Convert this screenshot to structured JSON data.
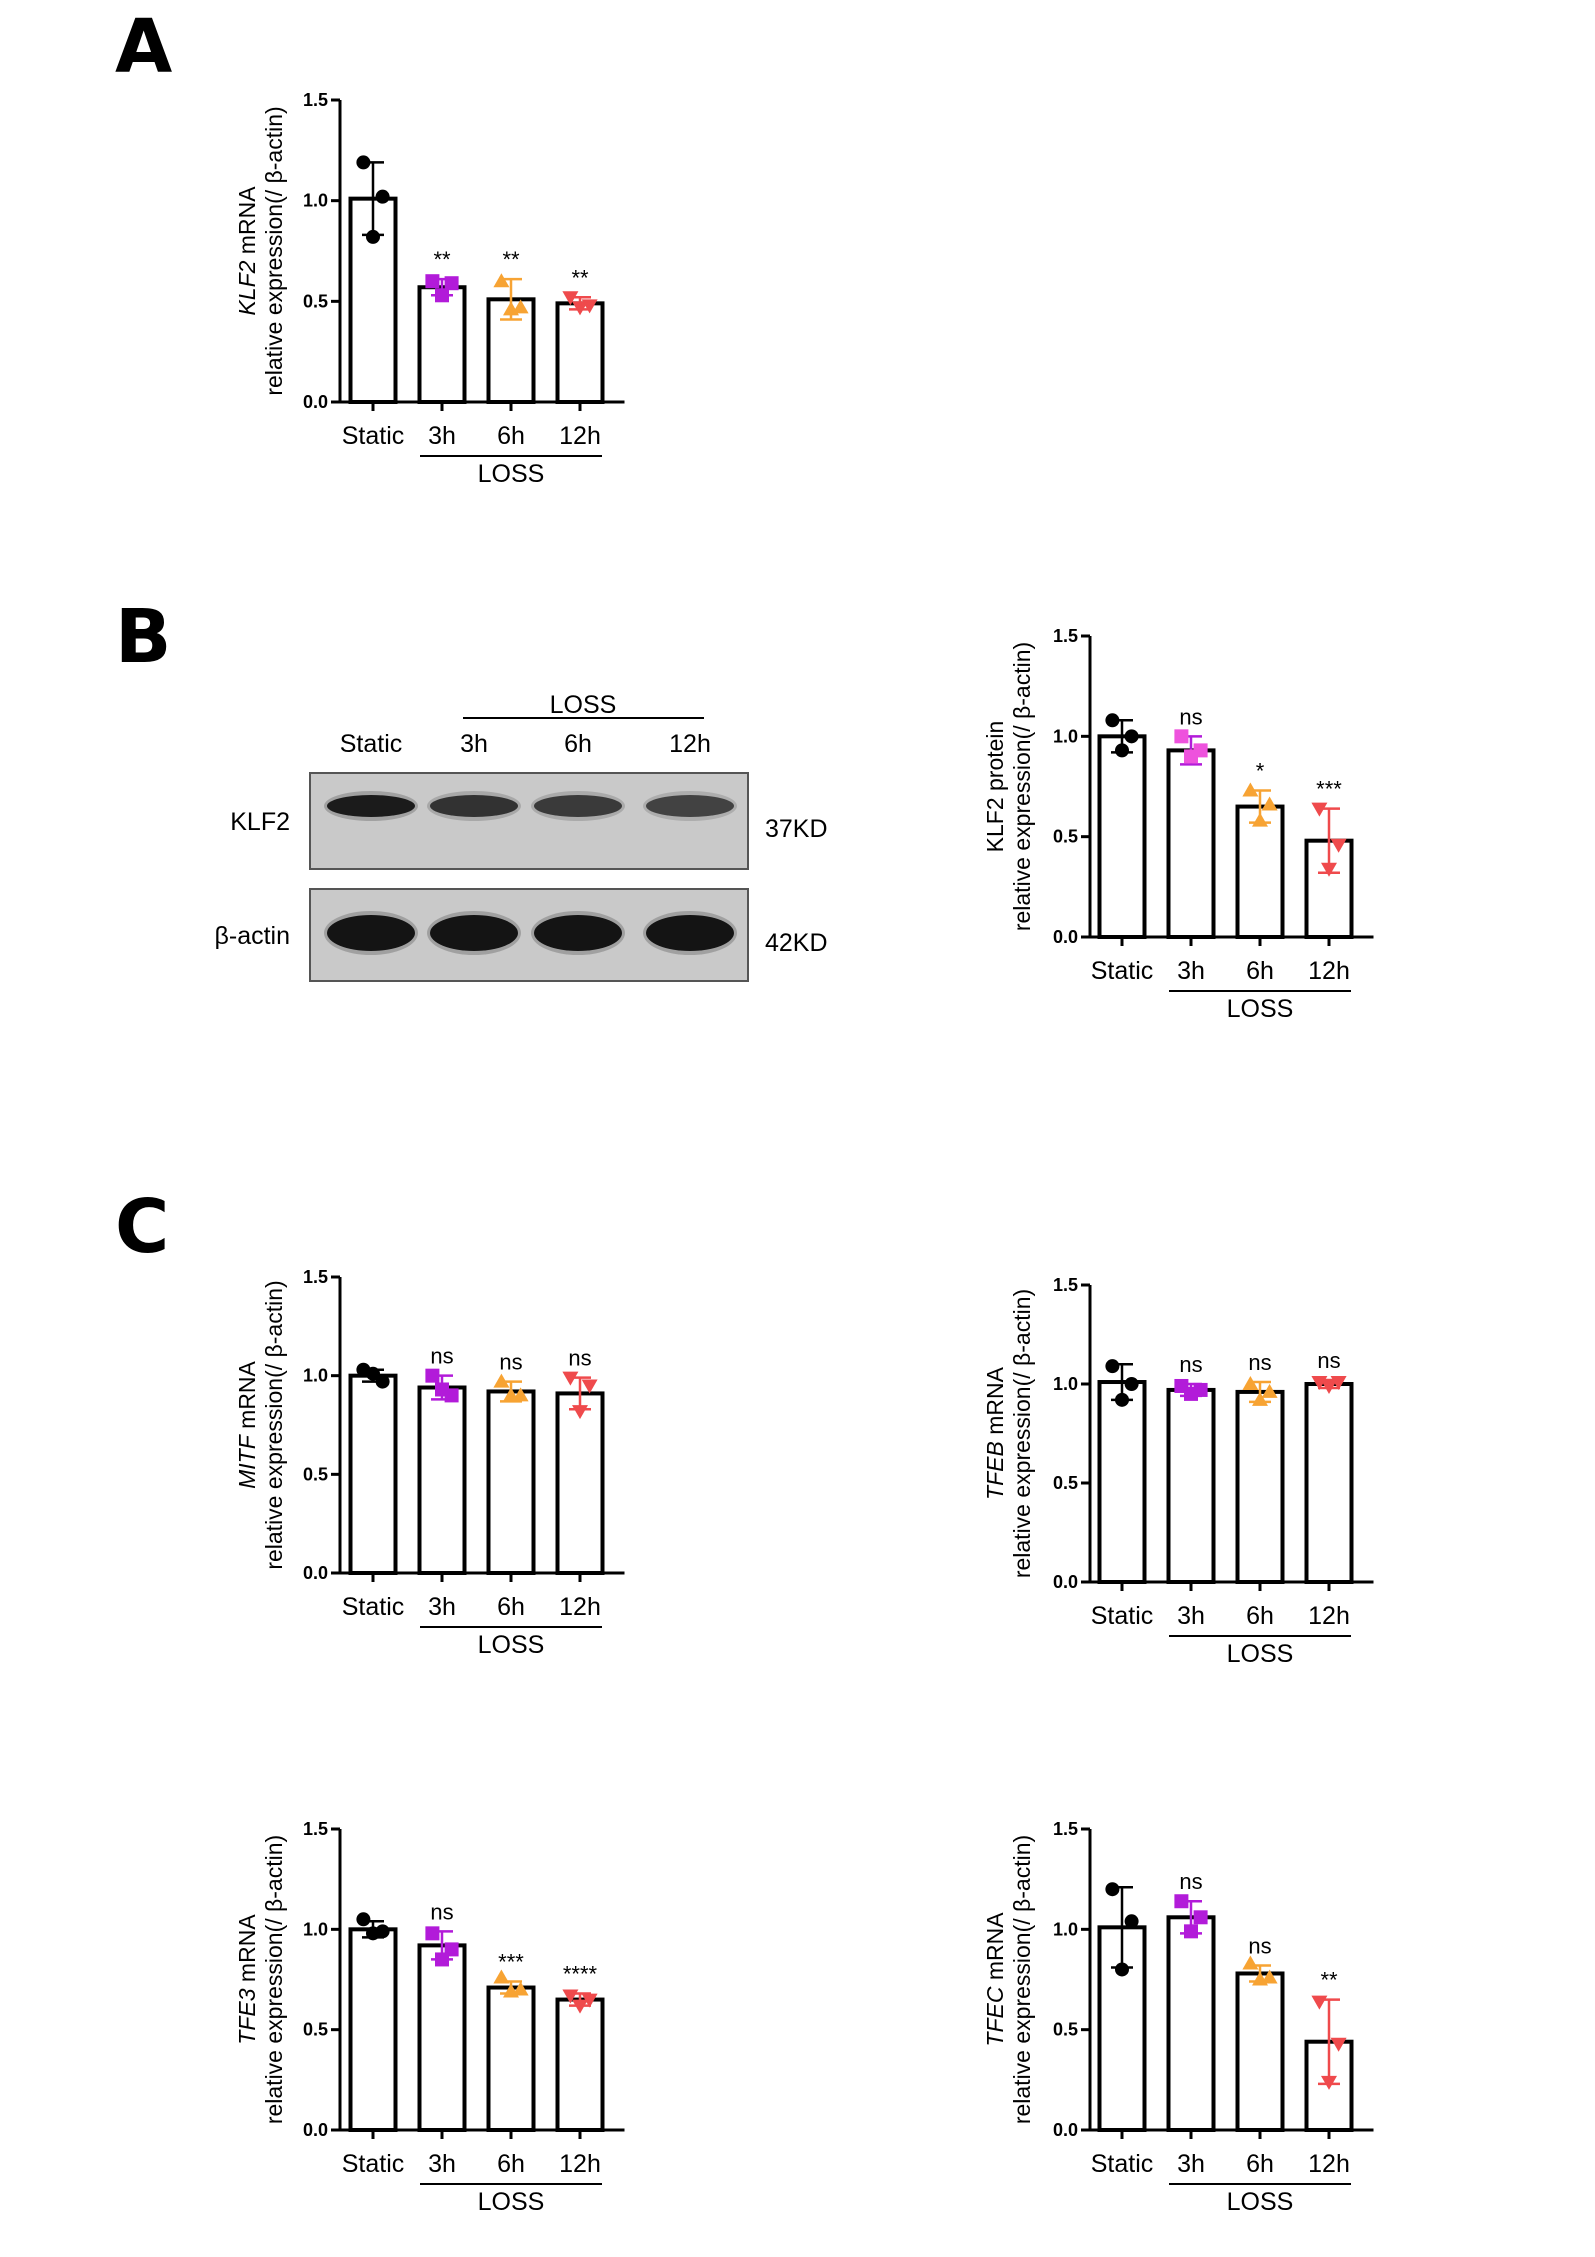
{
  "panels": {
    "a": "A",
    "b": "B",
    "c": "C"
  },
  "colors": {
    "static": "#000000",
    "h3": "#b21bd9",
    "h6": "#f7a333",
    "h12": "#ef4a4c",
    "h3_b": "#ee52dd"
  },
  "blot": {
    "columns": [
      "Static",
      "3h",
      "6h",
      "12h"
    ],
    "group": "LOSS",
    "rows": [
      {
        "label": "KLF2",
        "kd": "37KD"
      },
      {
        "label": "β-actin",
        "kd": "42KD"
      }
    ],
    "band_intensity": {
      "KLF2": [
        0.95,
        0.8,
        0.75,
        0.7
      ],
      "β-actin": [
        1,
        1,
        1,
        1
      ]
    }
  },
  "chart_data": [
    {
      "id": "A",
      "type": "bar",
      "categories": [
        "Static",
        "3h",
        "6h",
        "12h"
      ],
      "group_label": "LOSS",
      "ylabel_gene": "KLF2",
      "ylabel_rest": " mRNA",
      "ylabel2": "relative expression(/ β-actin)",
      "ylim": [
        0,
        1.5
      ],
      "yticks": [
        "0.0",
        "0.5",
        "1.0",
        "1.5"
      ],
      "values": [
        1.01,
        0.57,
        0.51,
        0.49
      ],
      "sd": [
        0.18,
        0.04,
        0.1,
        0.03
      ],
      "points": [
        [
          1.19,
          1.02,
          0.82
        ],
        [
          0.6,
          0.59,
          0.53
        ],
        [
          0.6,
          0.47,
          0.46
        ],
        [
          0.52,
          0.48,
          0.47
        ]
      ],
      "markers": [
        "circle",
        "square",
        "triangle-up",
        "triangle-down"
      ],
      "significance": [
        "",
        "**",
        "**",
        "**"
      ]
    },
    {
      "id": "B",
      "type": "bar",
      "categories": [
        "Static",
        "3h",
        "6h",
        "12h"
      ],
      "group_label": "LOSS",
      "ylabel_gene": "",
      "ylabel_rest": "KLF2 protein",
      "ylabel2": "relative expression(/ β-actin)",
      "ylim": [
        0,
        1.5
      ],
      "yticks": [
        "0.0",
        "0.5",
        "1.0",
        "1.5"
      ],
      "values": [
        1.0,
        0.93,
        0.65,
        0.48
      ],
      "sd": [
        0.08,
        0.07,
        0.08,
        0.16
      ],
      "points": [
        [
          1.08,
          1.0,
          0.93
        ],
        [
          1.0,
          0.93,
          0.9
        ],
        [
          0.73,
          0.66,
          0.58
        ],
        [
          0.64,
          0.46,
          0.34
        ]
      ],
      "markers": [
        "circle",
        "square",
        "triangle-up",
        "triangle-down"
      ],
      "significance": [
        "",
        "ns",
        "*",
        "***"
      ]
    },
    {
      "id": "C1",
      "type": "bar",
      "categories": [
        "Static",
        "3h",
        "6h",
        "12h"
      ],
      "group_label": "LOSS",
      "ylabel_gene": "MITF",
      "ylabel_rest": " mRNA",
      "ylabel2": "relative expression(/ β-actin)",
      "ylim": [
        0,
        1.5
      ],
      "yticks": [
        "0.0",
        "0.5",
        "1.0",
        "1.5"
      ],
      "values": [
        1.0,
        0.94,
        0.92,
        0.91
      ],
      "sd": [
        0.03,
        0.06,
        0.05,
        0.08
      ],
      "points": [
        [
          1.03,
          0.97,
          1.01
        ],
        [
          1.0,
          0.9,
          0.93
        ],
        [
          0.97,
          0.9,
          0.9
        ],
        [
          0.99,
          0.95,
          0.82
        ]
      ],
      "markers": [
        "circle",
        "square",
        "triangle-up",
        "triangle-down"
      ],
      "significance": [
        "",
        "ns",
        "ns",
        "ns"
      ]
    },
    {
      "id": "C2",
      "type": "bar",
      "categories": [
        "Static",
        "3h",
        "6h",
        "12h"
      ],
      "group_label": "LOSS",
      "ylabel_gene": "TFEB",
      "ylabel_rest": " mRNA",
      "ylabel2": "relative expression(/ β-actin)",
      "ylim": [
        0,
        1.5
      ],
      "yticks": [
        "0.0",
        "0.5",
        "1.0",
        "1.5"
      ],
      "values": [
        1.01,
        0.97,
        0.96,
        1.0
      ],
      "sd": [
        0.09,
        0.03,
        0.05,
        0.02
      ],
      "points": [
        [
          1.09,
          1.0,
          0.92
        ],
        [
          0.99,
          0.97,
          0.95
        ],
        [
          1.0,
          0.96,
          0.92
        ],
        [
          1.01,
          1.01,
          0.99
        ]
      ],
      "markers": [
        "circle",
        "square",
        "triangle-up",
        "triangle-down"
      ],
      "significance": [
        "",
        "ns",
        "ns",
        "ns"
      ]
    },
    {
      "id": "C3",
      "type": "bar",
      "categories": [
        "Static",
        "3h",
        "6h",
        "12h"
      ],
      "group_label": "LOSS",
      "ylabel_gene": "TFE3",
      "ylabel_rest": " mRNA",
      "ylabel2": "relative expression(/ β-actin)",
      "ylim": [
        0,
        1.5
      ],
      "yticks": [
        "0.0",
        "0.5",
        "1.0",
        "1.5"
      ],
      "values": [
        1.0,
        0.92,
        0.71,
        0.65
      ],
      "sd": [
        0.04,
        0.07,
        0.03,
        0.03
      ],
      "points": [
        [
          1.05,
          0.99,
          0.98
        ],
        [
          0.98,
          0.9,
          0.85
        ],
        [
          0.76,
          0.7,
          0.69
        ],
        [
          0.67,
          0.65,
          0.62
        ]
      ],
      "markers": [
        "circle",
        "square",
        "triangle-up",
        "triangle-down"
      ],
      "significance": [
        "",
        "ns",
        "***",
        "****"
      ]
    },
    {
      "id": "C4",
      "type": "bar",
      "categories": [
        "Static",
        "3h",
        "6h",
        "12h"
      ],
      "group_label": "LOSS",
      "ylabel_gene": "TFEC",
      "ylabel_rest": " mRNA",
      "ylabel2": "relative expression(/ β-actin)",
      "ylim": [
        0,
        1.5
      ],
      "yticks": [
        "0.0",
        "0.5",
        "1.0",
        "1.5"
      ],
      "values": [
        1.01,
        1.06,
        0.78,
        0.44
      ],
      "sd": [
        0.2,
        0.08,
        0.04,
        0.21
      ],
      "points": [
        [
          1.2,
          1.04,
          0.8
        ],
        [
          1.14,
          1.06,
          0.99
        ],
        [
          0.83,
          0.76,
          0.75
        ],
        [
          0.64,
          0.43,
          0.24
        ]
      ],
      "markers": [
        "circle",
        "square",
        "triangle-up",
        "triangle-down"
      ],
      "significance": [
        "",
        "ns",
        "ns",
        "**"
      ]
    }
  ]
}
